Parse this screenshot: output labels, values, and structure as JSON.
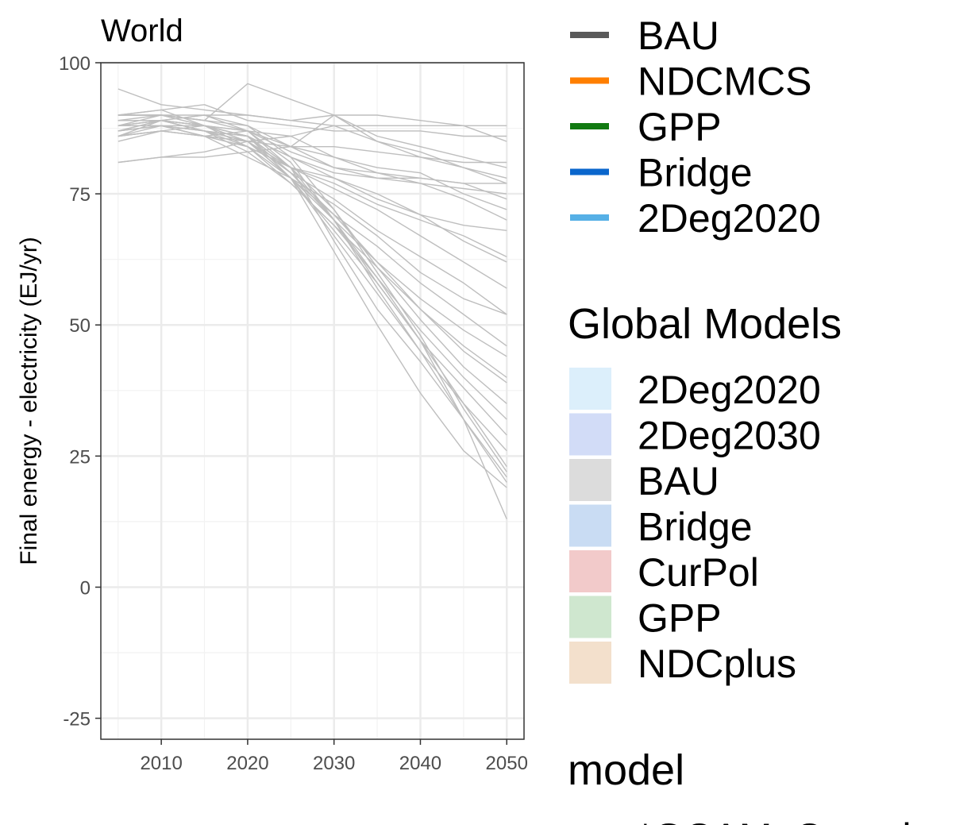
{
  "chart_data": {
    "type": "line",
    "title": "World",
    "xlabel": "",
    "ylabel": "Final energy - electricity (EJ/yr)",
    "xlim": [
      2003,
      2052
    ],
    "ylim": [
      -29,
      100
    ],
    "x_ticks": [
      2010,
      2020,
      2030,
      2040,
      2050
    ],
    "y_ticks": [
      -25,
      0,
      25,
      50,
      75,
      100
    ],
    "grid": true,
    "legend_position": "right",
    "line_color": "#bebebe",
    "series": [
      {
        "x": [
          2005,
          2010,
          2015,
          2020,
          2025,
          2030,
          2035,
          2040,
          2045,
          2050
        ],
        "values": [
          95,
          92,
          91,
          90,
          89,
          88,
          88,
          88,
          88,
          88
        ]
      },
      {
        "x": [
          2005,
          2010,
          2015,
          2020,
          2025,
          2030,
          2035,
          2040,
          2045,
          2050
        ],
        "values": [
          90,
          91,
          92,
          89,
          88,
          87,
          87,
          87,
          86,
          86
        ]
      },
      {
        "x": [
          2005,
          2010,
          2015,
          2020,
          2025,
          2030,
          2035,
          2040,
          2045,
          2050
        ],
        "values": [
          87,
          89,
          90,
          90,
          89,
          90,
          90,
          89,
          88,
          85
        ]
      },
      {
        "x": [
          2005,
          2010,
          2015,
          2020,
          2025,
          2030,
          2035,
          2040,
          2045,
          2050
        ],
        "values": [
          89,
          90,
          89,
          96,
          93,
          90,
          86,
          84,
          82,
          80
        ]
      },
      {
        "x": [
          2005,
          2010,
          2015,
          2020,
          2025,
          2030,
          2035,
          2040,
          2045,
          2050
        ],
        "values": [
          88,
          88,
          86,
          87,
          86,
          88,
          85,
          83,
          80,
          78
        ]
      },
      {
        "x": [
          2005,
          2010,
          2015,
          2020,
          2025,
          2030,
          2035,
          2040,
          2045,
          2050
        ],
        "values": [
          86,
          89,
          90,
          88,
          84,
          90,
          85,
          82,
          80,
          77
        ]
      },
      {
        "x": [
          2005,
          2010,
          2015,
          2020,
          2025,
          2030,
          2035,
          2040,
          2045,
          2050
        ],
        "values": [
          85,
          87,
          88,
          86,
          82,
          79,
          78,
          78,
          77,
          77
        ]
      },
      {
        "x": [
          2005,
          2010,
          2015,
          2020,
          2025,
          2030,
          2035,
          2040,
          2045,
          2050
        ],
        "values": [
          90,
          90,
          90,
          87,
          83,
          80,
          78,
          77,
          76,
          75
        ]
      },
      {
        "x": [
          2005,
          2010,
          2015,
          2020,
          2025,
          2030,
          2035,
          2040,
          2045,
          2050
        ],
        "values": [
          90,
          91,
          88,
          85,
          84,
          80,
          79,
          78,
          77,
          74
        ]
      },
      {
        "x": [
          2005,
          2010,
          2015,
          2020,
          2025,
          2030,
          2035,
          2040,
          2045,
          2050
        ],
        "values": [
          81,
          82,
          82,
          83,
          84,
          84,
          83,
          82,
          81,
          81
        ]
      },
      {
        "x": [
          2005,
          2010,
          2015,
          2020,
          2025,
          2030,
          2035,
          2040,
          2045,
          2050
        ],
        "values": [
          81,
          82,
          83,
          85,
          86,
          82,
          80,
          79,
          75,
          72
        ]
      },
      {
        "x": [
          2005,
          2010,
          2015,
          2020,
          2025,
          2030,
          2035,
          2040,
          2045,
          2050
        ],
        "values": [
          88,
          90,
          89,
          87,
          84,
          82,
          79,
          77,
          74,
          70
        ]
      },
      {
        "x": [
          2005,
          2010,
          2015,
          2020,
          2025,
          2030,
          2035,
          2040,
          2045,
          2050
        ],
        "values": [
          87,
          89,
          88,
          86,
          82,
          78,
          74,
          71,
          69,
          68
        ]
      },
      {
        "x": [
          2005,
          2010,
          2015,
          2020,
          2025,
          2030,
          2035,
          2040,
          2045,
          2050
        ],
        "values": [
          86,
          88,
          88,
          85,
          80,
          77,
          73,
          70,
          67,
          63
        ]
      },
      {
        "x": [
          2005,
          2010,
          2015,
          2020,
          2025,
          2030,
          2035,
          2040,
          2045,
          2050
        ],
        "values": [
          90,
          90,
          88,
          84,
          80,
          78,
          75,
          71,
          66,
          62
        ]
      },
      {
        "x": [
          2005,
          2010,
          2015,
          2020,
          2025,
          2030,
          2035,
          2040,
          2045,
          2050
        ],
        "values": [
          89,
          89,
          87,
          84,
          80,
          76,
          72,
          67,
          62,
          57
        ]
      },
      {
        "x": [
          2005,
          2010,
          2015,
          2020,
          2025,
          2030,
          2035,
          2040,
          2045,
          2050
        ],
        "values": [
          88,
          89,
          87,
          85,
          79,
          74,
          68,
          63,
          58,
          52
        ]
      },
      {
        "x": [
          2005,
          2010,
          2015,
          2020,
          2025,
          2030,
          2035,
          2040,
          2045,
          2050
        ],
        "values": [
          86,
          87,
          86,
          82,
          78,
          73,
          67,
          60,
          55,
          52
        ]
      },
      {
        "x": [
          2005,
          2010,
          2015,
          2020,
          2025,
          2030,
          2035,
          2040,
          2045,
          2050
        ],
        "values": [
          87,
          88,
          86,
          84,
          78,
          71,
          65,
          58,
          52,
          46
        ]
      },
      {
        "x": [
          2005,
          2010,
          2015,
          2020,
          2025,
          2030,
          2035,
          2040,
          2045,
          2050
        ],
        "values": [
          89,
          89,
          87,
          85,
          78,
          70,
          62,
          55,
          49,
          44
        ]
      },
      {
        "x": [
          2005,
          2010,
          2015,
          2020,
          2025,
          2030,
          2035,
          2040,
          2045,
          2050
        ],
        "values": [
          88,
          89,
          87,
          83,
          77,
          69,
          61,
          53,
          46,
          40
        ]
      },
      {
        "x": [
          2005,
          2010,
          2015,
          2020,
          2025,
          2030,
          2035,
          2040,
          2045,
          2050
        ],
        "values": [
          87,
          88,
          86,
          85,
          79,
          71,
          62,
          53,
          45,
          39
        ]
      },
      {
        "x": [
          2005,
          2010,
          2015,
          2020,
          2025,
          2030,
          2035,
          2040,
          2045,
          2050
        ],
        "values": [
          90,
          90,
          88,
          86,
          80,
          72,
          61,
          51,
          42,
          35
        ]
      },
      {
        "x": [
          2005,
          2010,
          2015,
          2020,
          2025,
          2030,
          2035,
          2040,
          2045,
          2050
        ],
        "values": [
          86,
          87,
          86,
          84,
          77,
          69,
          59,
          49,
          40,
          32
        ]
      },
      {
        "x": [
          2005,
          2010,
          2015,
          2020,
          2025,
          2030,
          2035,
          2040,
          2045,
          2050
        ],
        "values": [
          89,
          89,
          88,
          87,
          80,
          70,
          58,
          47,
          38,
          29
        ]
      },
      {
        "x": [
          2005,
          2010,
          2015,
          2020,
          2025,
          2030,
          2035,
          2040,
          2045,
          2050
        ],
        "values": [
          88,
          88,
          87,
          85,
          78,
          67,
          56,
          45,
          35,
          26
        ]
      },
      {
        "x": [
          2005,
          2010,
          2015,
          2020,
          2025,
          2030,
          2035,
          2040,
          2045,
          2050
        ],
        "values": [
          87,
          88,
          87,
          86,
          79,
          70,
          59,
          47,
          35,
          23
        ]
      },
      {
        "x": [
          2005,
          2010,
          2015,
          2020,
          2025,
          2030,
          2035,
          2040,
          2045,
          2050
        ],
        "values": [
          90,
          90,
          89,
          88,
          82,
          72,
          60,
          48,
          34,
          22
        ]
      },
      {
        "x": [
          2005,
          2010,
          2015,
          2020,
          2025,
          2030,
          2035,
          2040,
          2045,
          2050
        ],
        "values": [
          88,
          88,
          87,
          86,
          80,
          66,
          53,
          43,
          32,
          20
        ]
      },
      {
        "x": [
          2005,
          2010,
          2015,
          2020,
          2025,
          2030,
          2035,
          2040,
          2045,
          2050
        ],
        "values": [
          86,
          87,
          86,
          85,
          78,
          64,
          50,
          37,
          26,
          19
        ]
      },
      {
        "x": [
          2005,
          2010,
          2015,
          2020,
          2025,
          2030,
          2035,
          2040,
          2045,
          2050
        ],
        "values": [
          89,
          89,
          88,
          87,
          81,
          70,
          57,
          45,
          32,
          21
        ]
      },
      {
        "x": [
          2005,
          2010,
          2015,
          2020,
          2025,
          2030,
          2035,
          2040,
          2045,
          2050
        ],
        "values": [
          88,
          89,
          88,
          86,
          78,
          68,
          58,
          47,
          32,
          13
        ]
      }
    ]
  },
  "legend_scenarios": {
    "items": [
      {
        "label": "BAU",
        "color": "#5a5a5a"
      },
      {
        "label": "NDCMCS",
        "color": "#ff7f00"
      },
      {
        "label": "GPP",
        "color": "#117a11"
      },
      {
        "label": "Bridge",
        "color": "#0a66cc"
      },
      {
        "label": "2Deg2020",
        "color": "#56b0e6"
      }
    ]
  },
  "legend_global_models": {
    "title": "Global Models",
    "items": [
      {
        "label": "2Deg2020",
        "color": "#dceffb"
      },
      {
        "label": "2Deg2030",
        "color": "#d2dcf7"
      },
      {
        "label": "BAU",
        "color": "#dcdcdc"
      },
      {
        "label": "Bridge",
        "color": "#c9dcf3"
      },
      {
        "label": "CurPol",
        "color": "#f2caca"
      },
      {
        "label": "GPP",
        "color": "#cfe7cf"
      },
      {
        "label": "NDCplus",
        "color": "#f3e0cc"
      }
    ]
  },
  "legend_model": {
    "title": "model",
    "items": [
      {
        "label": "*GCAM_Canada"
      }
    ]
  }
}
